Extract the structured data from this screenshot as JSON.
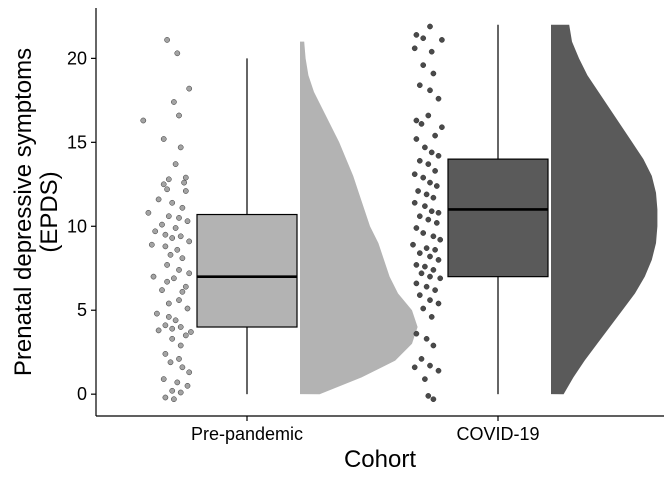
{
  "chart_data": {
    "type": "raincloud",
    "xlabel": "Cohort",
    "ylabel_lines": [
      "Prenatal depressive symptoms",
      "(EPDS)"
    ],
    "ylim": [
      -1.3,
      23
    ],
    "yticks": [
      0,
      5,
      10,
      15,
      20
    ],
    "grid": false,
    "legend": "none",
    "categories": [
      "Pre-pandemic",
      "COVID-19"
    ],
    "groups": [
      {
        "name": "Pre-pandemic",
        "color": "#b3b3b3",
        "point_color": "#a3a3a3",
        "box": {
          "min": 0,
          "q1": 4,
          "median": 7,
          "q3": 10.7,
          "max": 20
        },
        "density": [
          [
            0,
            0.14
          ],
          [
            1,
            0.44
          ],
          [
            2,
            0.68
          ],
          [
            3,
            0.8
          ],
          [
            4,
            0.84
          ],
          [
            5,
            0.8
          ],
          [
            6,
            0.7
          ],
          [
            7,
            0.64
          ],
          [
            8,
            0.6
          ],
          [
            9,
            0.56
          ],
          [
            10,
            0.5
          ],
          [
            11,
            0.46
          ],
          [
            12,
            0.42
          ],
          [
            13,
            0.38
          ],
          [
            14,
            0.33
          ],
          [
            15,
            0.28
          ],
          [
            16,
            0.22
          ],
          [
            17,
            0.16
          ],
          [
            18,
            0.1
          ],
          [
            19,
            0.06
          ],
          [
            20,
            0.04
          ],
          [
            21,
            0.03
          ]
        ],
        "points": [
          [
            0.15,
            21.1
          ],
          [
            0.45,
            20.3
          ],
          [
            0.8,
            18.2
          ],
          [
            0.35,
            17.4
          ],
          [
            -0.55,
            16.3
          ],
          [
            0.5,
            16.6
          ],
          [
            0.05,
            15.2
          ],
          [
            0.55,
            14.7
          ],
          [
            0.4,
            13.7
          ],
          [
            0.7,
            12.9
          ],
          [
            0.2,
            12.8
          ],
          [
            0.65,
            12.6
          ],
          [
            0.05,
            12.5
          ],
          [
            0.15,
            12.2
          ],
          [
            0.7,
            12.1
          ],
          [
            -0.1,
            11.6
          ],
          [
            0.3,
            11.4
          ],
          [
            0.6,
            11.1
          ],
          [
            -0.4,
            10.8
          ],
          [
            0.2,
            10.6
          ],
          [
            0.5,
            10.5
          ],
          [
            0.75,
            10.3
          ],
          [
            0.0,
            10.1
          ],
          [
            0.4,
            9.9
          ],
          [
            -0.2,
            9.7
          ],
          [
            0.1,
            9.5
          ],
          [
            0.55,
            9.4
          ],
          [
            0.3,
            9.3
          ],
          [
            0.8,
            9.1
          ],
          [
            -0.3,
            8.9
          ],
          [
            0.1,
            8.8
          ],
          [
            0.45,
            8.6
          ],
          [
            0.25,
            8.3
          ],
          [
            0.6,
            8.1
          ],
          [
            0.15,
            7.7
          ],
          [
            0.5,
            7.4
          ],
          [
            0.8,
            7.2
          ],
          [
            -0.25,
            7.0
          ],
          [
            0.35,
            6.9
          ],
          [
            0.15,
            6.7
          ],
          [
            0.7,
            6.4
          ],
          [
            0.0,
            6.2
          ],
          [
            0.6,
            6.1
          ],
          [
            0.5,
            5.6
          ],
          [
            0.2,
            5.4
          ],
          [
            0.75,
            5.1
          ],
          [
            -0.15,
            4.8
          ],
          [
            0.2,
            4.6
          ],
          [
            0.4,
            4.4
          ],
          [
            0.1,
            4.1
          ],
          [
            0.55,
            4.0
          ],
          [
            0.3,
            3.9
          ],
          [
            -0.1,
            3.8
          ],
          [
            0.85,
            3.7
          ],
          [
            0.7,
            3.5
          ],
          [
            0.3,
            3.3
          ],
          [
            0.55,
            2.9
          ],
          [
            0.1,
            2.4
          ],
          [
            0.5,
            2.1
          ],
          [
            0.25,
            1.9
          ],
          [
            0.6,
            1.6
          ],
          [
            0.8,
            1.3
          ],
          [
            0.05,
            0.9
          ],
          [
            0.45,
            0.7
          ],
          [
            0.75,
            0.5
          ],
          [
            0.3,
            0.2
          ],
          [
            0.55,
            0.1
          ],
          [
            0.1,
            -0.2
          ],
          [
            0.35,
            -0.3
          ]
        ]
      },
      {
        "name": "COVID-19",
        "color": "#5a5a5a",
        "point_color": "#4a4a4a",
        "box": {
          "min": 0,
          "q1": 7,
          "median": 11,
          "q3": 14,
          "max": 22
        },
        "density": [
          [
            0,
            0.09
          ],
          [
            1,
            0.16
          ],
          [
            2,
            0.24
          ],
          [
            3,
            0.33
          ],
          [
            4,
            0.42
          ],
          [
            5,
            0.51
          ],
          [
            6,
            0.6
          ],
          [
            7,
            0.67
          ],
          [
            8,
            0.72
          ],
          [
            9,
            0.75
          ],
          [
            10,
            0.76
          ],
          [
            11,
            0.76
          ],
          [
            12,
            0.75
          ],
          [
            13,
            0.72
          ],
          [
            14,
            0.66
          ],
          [
            15,
            0.58
          ],
          [
            16,
            0.5
          ],
          [
            17,
            0.42
          ],
          [
            18,
            0.34
          ],
          [
            19,
            0.26
          ],
          [
            20,
            0.2
          ],
          [
            21,
            0.15
          ],
          [
            22,
            0.13
          ]
        ],
        "points": [
          [
            0.5,
            21.9
          ],
          [
            0.1,
            21.4
          ],
          [
            0.3,
            21.2
          ],
          [
            0.85,
            21.1
          ],
          [
            0.05,
            20.6
          ],
          [
            0.55,
            20.4
          ],
          [
            0.3,
            19.6
          ],
          [
            0.6,
            19.1
          ],
          [
            0.2,
            18.4
          ],
          [
            0.5,
            18.1
          ],
          [
            0.75,
            17.6
          ],
          [
            0.45,
            16.6
          ],
          [
            0.1,
            16.3
          ],
          [
            0.25,
            16.1
          ],
          [
            0.65,
            15.4
          ],
          [
            0.85,
            15.9
          ],
          [
            0.1,
            15.2
          ],
          [
            0.35,
            14.7
          ],
          [
            0.55,
            14.4
          ],
          [
            0.75,
            14.2
          ],
          [
            0.2,
            13.9
          ],
          [
            0.45,
            13.7
          ],
          [
            0.65,
            13.3
          ],
          [
            0.05,
            13.1
          ],
          [
            0.3,
            12.9
          ],
          [
            0.5,
            12.6
          ],
          [
            0.7,
            12.4
          ],
          [
            0.15,
            12.1
          ],
          [
            0.4,
            11.9
          ],
          [
            0.6,
            11.7
          ],
          [
            0.05,
            11.4
          ],
          [
            0.35,
            11.2
          ],
          [
            0.55,
            10.9
          ],
          [
            0.75,
            10.8
          ],
          [
            0.2,
            10.6
          ],
          [
            0.45,
            10.4
          ],
          [
            0.7,
            10.2
          ],
          [
            0.1,
            9.9
          ],
          [
            0.3,
            9.6
          ],
          [
            0.6,
            9.4
          ],
          [
            0.8,
            9.2
          ],
          [
            0.0,
            8.9
          ],
          [
            0.4,
            8.7
          ],
          [
            0.65,
            8.6
          ],
          [
            0.2,
            8.4
          ],
          [
            0.5,
            8.2
          ],
          [
            0.75,
            8.0
          ],
          [
            0.1,
            7.7
          ],
          [
            0.35,
            7.6
          ],
          [
            0.6,
            7.4
          ],
          [
            0.25,
            7.2
          ],
          [
            0.5,
            7.0
          ],
          [
            0.8,
            6.9
          ],
          [
            0.1,
            6.6
          ],
          [
            0.4,
            6.4
          ],
          [
            0.65,
            6.2
          ],
          [
            0.2,
            5.9
          ],
          [
            0.5,
            5.6
          ],
          [
            0.75,
            5.4
          ],
          [
            0.3,
            5.1
          ],
          [
            0.55,
            4.6
          ],
          [
            0.1,
            3.6
          ],
          [
            0.4,
            3.3
          ],
          [
            0.6,
            2.9
          ],
          [
            0.25,
            2.1
          ],
          [
            0.5,
            1.7
          ],
          [
            0.05,
            1.6
          ],
          [
            0.75,
            1.4
          ],
          [
            0.35,
            0.9
          ],
          [
            0.45,
            -0.1
          ],
          [
            0.6,
            -0.3
          ]
        ]
      }
    ]
  }
}
